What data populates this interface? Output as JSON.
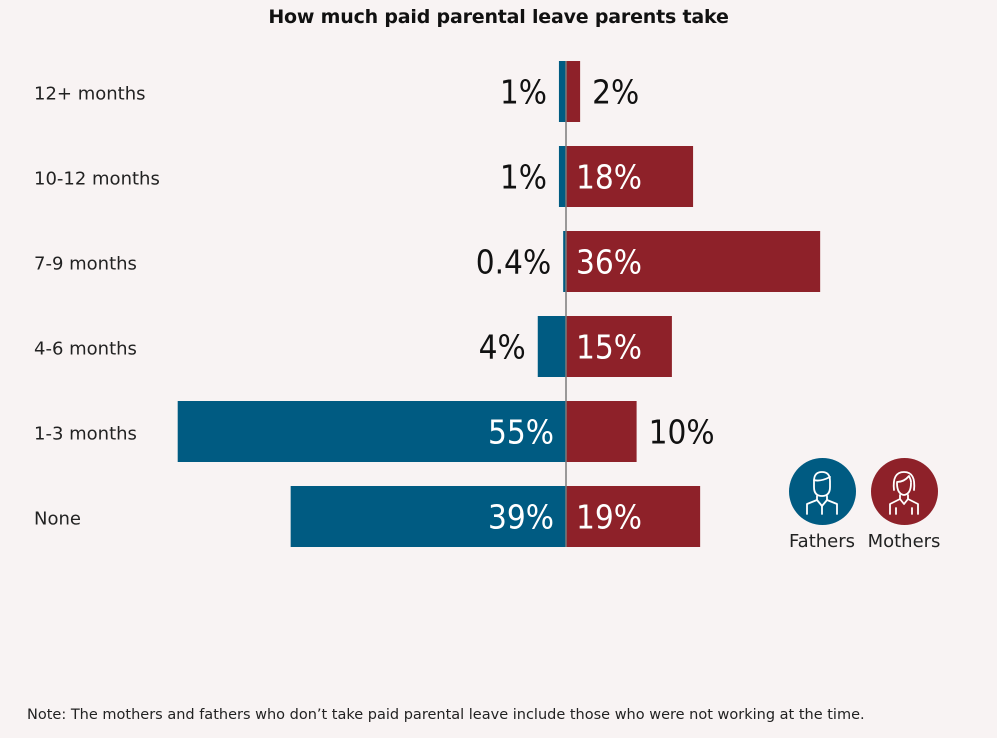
{
  "chart_data": {
    "type": "bar",
    "title": "How much paid parental leave parents take",
    "categories": [
      "12+ months",
      "10-12 months",
      "7-9 months",
      "4-6 months",
      "1-3 months",
      "None"
    ],
    "series": [
      {
        "name": "Fathers",
        "values": [
          1,
          1,
          0.4,
          4,
          55,
          39
        ],
        "labels": [
          "1%",
          "1%",
          "0.4%",
          "4%",
          "55%",
          "39%"
        ],
        "color": "#005b82"
      },
      {
        "name": "Mothers",
        "values": [
          2,
          18,
          36,
          15,
          10,
          19
        ],
        "labels": [
          "2%",
          "18%",
          "36%",
          "15%",
          "10%",
          "19%"
        ],
        "color": "#8e2129"
      }
    ],
    "legend_position": "right",
    "grid": false
  },
  "legend": {
    "fathers": {
      "label": "Fathers",
      "icon": "man-icon",
      "color": "#005b82"
    },
    "mothers": {
      "label": "Mothers",
      "icon": "woman-icon",
      "color": "#8e2129"
    }
  },
  "note": "Note: The mothers and fathers who don’t take paid parental leave include those who were not working at the time."
}
